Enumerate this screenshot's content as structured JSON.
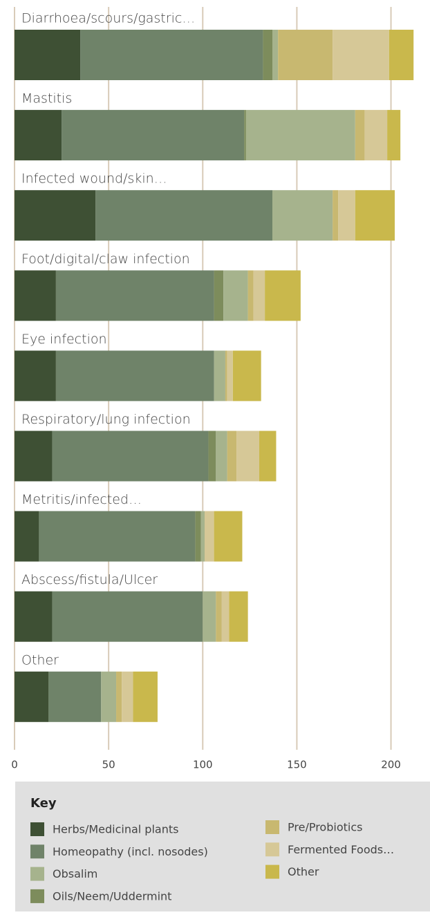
{
  "chart_data": {
    "type": "stacked-hbar",
    "categories": [
      "Diarrhoea/scours/gastric…",
      "Mastitis",
      "Infected wound/skin…",
      "Foot/digital/claw infection",
      "Eye infection",
      "Respiratory/lung infection",
      "Metritis/infected…",
      "Abscess/fistula/Ulcer",
      "Other"
    ],
    "series": [
      {
        "name": "Herbs/Medicinal plants",
        "color": "#3e5034",
        "values": [
          35,
          25,
          43,
          22,
          22,
          20,
          13,
          20,
          18
        ]
      },
      {
        "name": "Homeopathy (incl. nosodes)",
        "color": "#6f8369",
        "values": [
          97,
          97,
          94,
          84,
          84,
          83,
          83,
          80,
          28
        ]
      },
      {
        "name": "Oils/Neem/Uddermint",
        "color": "#7d8c5c",
        "values": [
          5,
          1,
          0,
          5,
          0,
          4,
          3,
          0,
          0
        ]
      },
      {
        "name": "Obsalim",
        "color": "#a6b38d",
        "values": [
          3,
          58,
          32,
          13,
          6,
          6,
          2,
          7,
          8
        ]
      },
      {
        "name": "Pre/Probiotics",
        "color": "#c8b870",
        "values": [
          29,
          5,
          3,
          3,
          1,
          5,
          0,
          3,
          3
        ]
      },
      {
        "name": "Fermented Foods…",
        "color": "#d6c897",
        "values": [
          30,
          12,
          9,
          6,
          3,
          12,
          5,
          4,
          6
        ]
      },
      {
        "name": "Other",
        "color": "#c9b84c",
        "values": [
          13,
          7,
          21,
          19,
          15,
          9,
          15,
          10,
          13
        ]
      }
    ],
    "xlim": [
      0,
      220
    ],
    "xticks": [
      0,
      50,
      100,
      150,
      200
    ],
    "grid": true,
    "legend_title": "Key"
  }
}
